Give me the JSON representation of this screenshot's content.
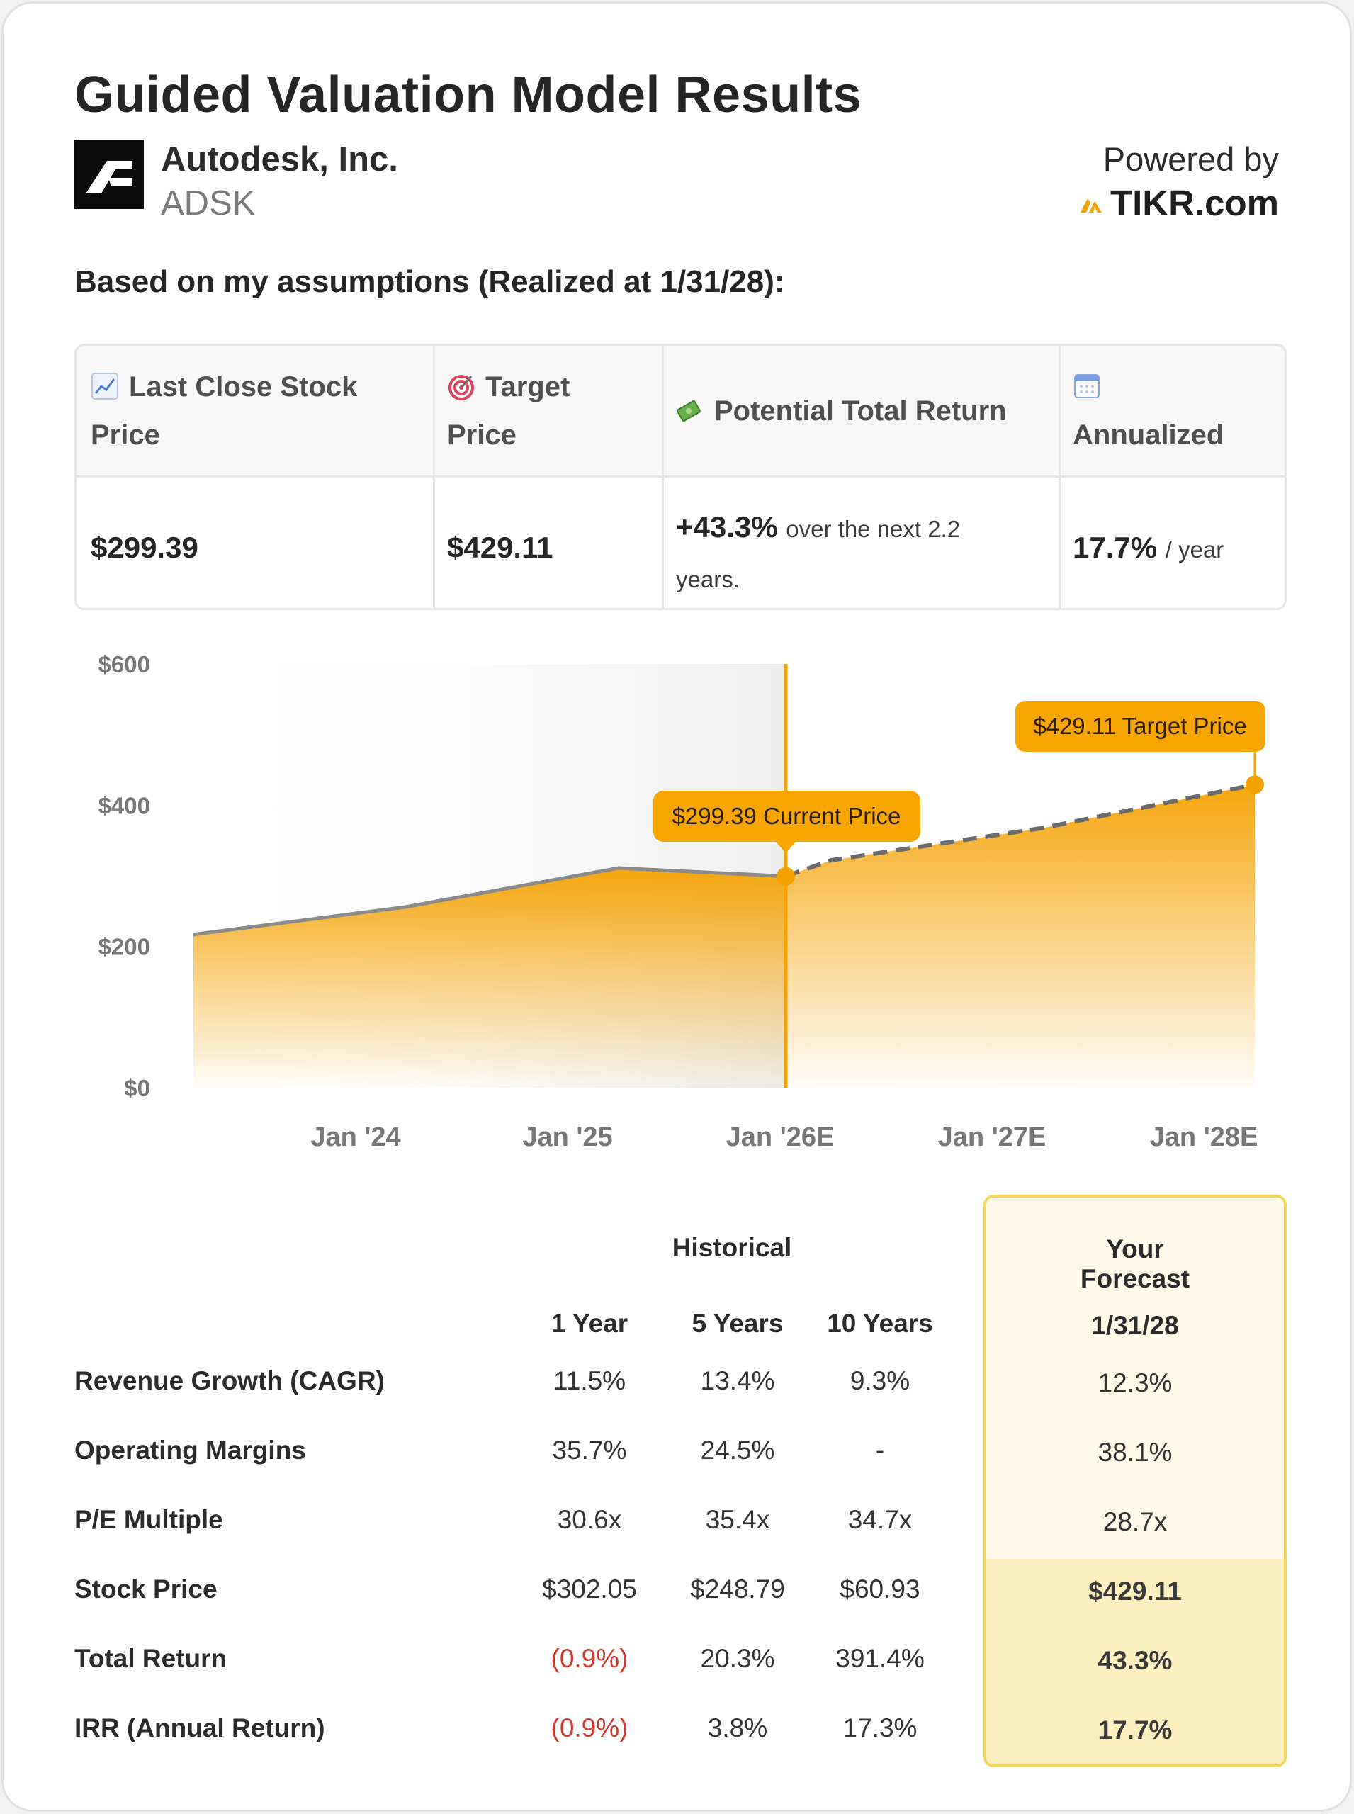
{
  "header": {
    "title": "Guided Valuation Model Results",
    "company": "Autodesk, Inc.",
    "ticker": "ADSK",
    "powered_by": "Powered by",
    "brand": "TIKR.com"
  },
  "subtitle": "Based on my assumptions (Realized at 1/31/28):",
  "summary": {
    "headers": {
      "last_close_line1": "Last Close Stock",
      "last_close_line2": "Price",
      "target_line1": "Target",
      "target_line2": "Price",
      "potential": "Potential Total Return",
      "annualized": "Annualized"
    },
    "icons": [
      "chart-up-icon",
      "target-icon",
      "money-icon",
      "calendar-icon"
    ],
    "values": {
      "last_close": "$299.39",
      "target": "$429.11",
      "potential_value": "+43.3%",
      "potential_text_line1": "over the next 2.2",
      "potential_text_line2": "years.",
      "annualized_value": "17.7%",
      "annualized_unit": "/ year"
    }
  },
  "chart_data": {
    "type": "area",
    "y_ticks": [
      "$0",
      "$200",
      "$400",
      "$600"
    ],
    "x_ticks": [
      "Jan '24",
      "Jan '25",
      "Jan '26E",
      "Jan '27E",
      "Jan '28E"
    ],
    "ylim": [
      0,
      600
    ],
    "historical": [
      {
        "x": "Jan '23",
        "y": 217
      },
      {
        "x": "Jan '24",
        "y": 256
      },
      {
        "x": "Jan '25",
        "y": 311
      },
      {
        "x": "Current",
        "y": 299.39
      }
    ],
    "forecast": [
      {
        "x": "Current",
        "y": 299.39
      },
      {
        "x": "Jan '26E",
        "y": 322
      },
      {
        "x": "Jan '27E",
        "y": 368
      },
      {
        "x": "Jan '28E",
        "y": 429.11
      }
    ],
    "current_label": "$299.39 Current Price",
    "target_label": "$429.11 Target Price",
    "colors": {
      "accent": "#f5a100",
      "line": "#8a8a8a"
    }
  },
  "stats": {
    "historical_label": "Historical",
    "forecast_label": "Your Forecast",
    "columns": [
      "1 Year",
      "5 Years",
      "10 Years"
    ],
    "forecast_column": "1/31/28",
    "rows": [
      {
        "label": "Revenue Growth (CAGR)",
        "values": [
          "11.5%",
          "13.4%",
          "9.3%"
        ],
        "forecast": "12.3%"
      },
      {
        "label": "Operating Margins",
        "values": [
          "35.7%",
          "24.5%",
          "-"
        ],
        "forecast": "38.1%"
      },
      {
        "label": "P/E Multiple",
        "values": [
          "30.6x",
          "35.4x",
          "34.7x"
        ],
        "forecast": "28.7x"
      },
      {
        "label": "Stock Price",
        "values": [
          "$302.05",
          "$248.79",
          "$60.93"
        ],
        "forecast": "$429.11"
      },
      {
        "label": "Total Return",
        "values": [
          "(0.9%)",
          "20.3%",
          "391.4%"
        ],
        "forecast": "43.3%"
      },
      {
        "label": "IRR (Annual Return)",
        "values": [
          "(0.9%)",
          "3.8%",
          "17.3%"
        ],
        "forecast": "17.7%"
      }
    ],
    "colors": {
      "negative": "#d2392b",
      "forecast_border": "#f3d65a",
      "forecast_bg": "#fef9e8"
    }
  }
}
